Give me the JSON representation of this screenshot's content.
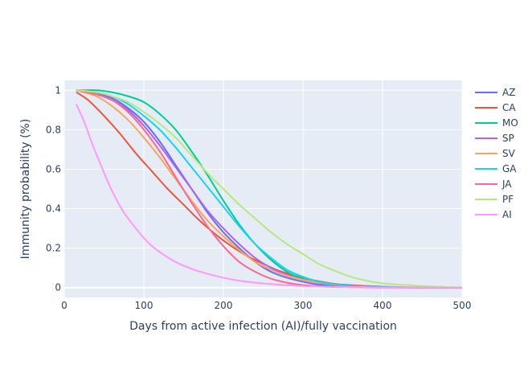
{
  "chart_data": {
    "type": "line",
    "xlabel": "Days from active infection (AI)/fully vaccination",
    "ylabel": "Immunity probability (%)",
    "xlim": [
      0,
      500
    ],
    "ylim": [
      -0.05,
      1.05
    ],
    "x_ticks": [
      0,
      100,
      200,
      300,
      400,
      500
    ],
    "y_ticks": [
      0,
      0.2,
      0.4,
      0.6,
      0.8,
      1
    ],
    "grid": true,
    "legend_position": "right",
    "plot_bg": "#e5ecf6",
    "series": [
      {
        "name": "AZ",
        "color": "#636efa",
        "x": [
          15,
          40,
          60,
          80,
          100,
          120,
          140,
          160,
          180,
          200,
          220,
          240,
          260,
          280,
          300,
          320,
          340,
          360,
          380,
          400,
          450,
          500
        ],
        "y": [
          1.0,
          0.985,
          0.96,
          0.91,
          0.84,
          0.74,
          0.62,
          0.5,
          0.38,
          0.28,
          0.2,
          0.13,
          0.08,
          0.05,
          0.03,
          0.015,
          0.01,
          0.005,
          0.003,
          0.002,
          0.0,
          0.0
        ]
      },
      {
        "name": "CA",
        "color": "#ef553b",
        "x": [
          15,
          30,
          50,
          70,
          90,
          110,
          130,
          150,
          170,
          190,
          210,
          230,
          250,
          270,
          290,
          310,
          330,
          350,
          400,
          450,
          500
        ],
        "y": [
          0.99,
          0.95,
          0.87,
          0.78,
          0.68,
          0.59,
          0.5,
          0.42,
          0.34,
          0.27,
          0.21,
          0.16,
          0.12,
          0.085,
          0.06,
          0.04,
          0.025,
          0.015,
          0.005,
          0.0,
          0.0
        ]
      },
      {
        "name": "MO",
        "color": "#00cc96",
        "x": [
          15,
          40,
          60,
          80,
          100,
          120,
          140,
          160,
          180,
          200,
          220,
          240,
          260,
          280,
          300,
          320,
          340,
          360,
          400,
          450,
          500
        ],
        "y": [
          1.0,
          1.0,
          0.99,
          0.97,
          0.94,
          0.88,
          0.8,
          0.69,
          0.57,
          0.44,
          0.32,
          0.22,
          0.14,
          0.08,
          0.045,
          0.025,
          0.013,
          0.007,
          0.002,
          0.0,
          0.0
        ]
      },
      {
        "name": "SP",
        "color": "#ab63fa",
        "x": [
          15,
          40,
          60,
          80,
          100,
          120,
          140,
          160,
          180,
          200,
          220,
          240,
          260,
          280,
          300,
          320,
          340,
          360,
          400,
          450,
          500
        ],
        "y": [
          1.0,
          0.98,
          0.95,
          0.9,
          0.82,
          0.72,
          0.61,
          0.5,
          0.39,
          0.3,
          0.22,
          0.15,
          0.1,
          0.065,
          0.04,
          0.025,
          0.015,
          0.008,
          0.003,
          0.0,
          0.0
        ]
      },
      {
        "name": "SV",
        "color": "#ffa15a",
        "x": [
          15,
          40,
          60,
          80,
          100,
          120,
          140,
          160,
          180,
          200,
          220,
          240,
          260,
          280,
          300,
          320,
          340,
          360,
          400,
          450,
          500
        ],
        "y": [
          1.0,
          0.97,
          0.92,
          0.85,
          0.76,
          0.66,
          0.55,
          0.44,
          0.34,
          0.26,
          0.19,
          0.13,
          0.09,
          0.06,
          0.04,
          0.025,
          0.015,
          0.008,
          0.003,
          0.0,
          0.0
        ]
      },
      {
        "name": "GA",
        "color": "#19d3f3",
        "x": [
          15,
          40,
          60,
          80,
          100,
          120,
          140,
          160,
          180,
          200,
          220,
          240,
          260,
          280,
          300,
          320,
          340,
          360,
          400,
          450,
          500
        ],
        "y": [
          1.0,
          0.99,
          0.97,
          0.93,
          0.87,
          0.8,
          0.71,
          0.61,
          0.51,
          0.41,
          0.31,
          0.22,
          0.15,
          0.09,
          0.055,
          0.03,
          0.017,
          0.009,
          0.003,
          0.0,
          0.0
        ]
      },
      {
        "name": "JA",
        "color": "#ff6692",
        "x": [
          15,
          40,
          60,
          80,
          100,
          120,
          140,
          160,
          180,
          200,
          220,
          240,
          260,
          280,
          300,
          320,
          340,
          360,
          400,
          450,
          500
        ],
        "y": [
          1.0,
          0.98,
          0.95,
          0.89,
          0.8,
          0.69,
          0.56,
          0.43,
          0.31,
          0.21,
          0.13,
          0.08,
          0.045,
          0.025,
          0.013,
          0.007,
          0.003,
          0.002,
          0.0,
          0.0,
          0.0
        ]
      },
      {
        "name": "PF",
        "color": "#b6e880",
        "x": [
          15,
          40,
          60,
          80,
          100,
          120,
          140,
          160,
          180,
          200,
          220,
          240,
          260,
          280,
          300,
          320,
          340,
          360,
          380,
          400,
          450,
          500
        ],
        "y": [
          1.0,
          0.99,
          0.97,
          0.94,
          0.89,
          0.83,
          0.76,
          0.67,
          0.58,
          0.5,
          0.42,
          0.35,
          0.28,
          0.22,
          0.17,
          0.12,
          0.085,
          0.055,
          0.035,
          0.022,
          0.008,
          0.0
        ]
      },
      {
        "name": "AI",
        "color": "#ff97ff",
        "x": [
          15,
          25,
          35,
          45,
          60,
          75,
          90,
          105,
          120,
          140,
          160,
          180,
          200,
          220,
          240,
          260,
          280,
          300,
          350,
          400,
          450,
          500
        ],
        "y": [
          0.93,
          0.84,
          0.73,
          0.63,
          0.49,
          0.38,
          0.3,
          0.23,
          0.18,
          0.13,
          0.095,
          0.07,
          0.05,
          0.035,
          0.025,
          0.018,
          0.012,
          0.008,
          0.003,
          0.001,
          0.0,
          0.0
        ]
      }
    ]
  }
}
